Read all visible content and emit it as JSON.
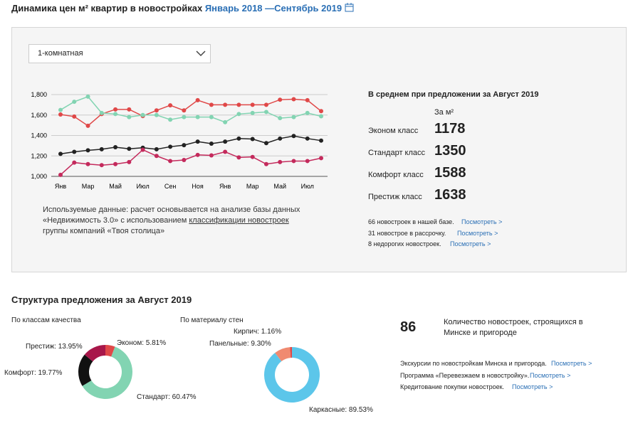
{
  "header": {
    "title": "Динамика цен м² квартир в новостройках",
    "period": "Январь 2018 —Сентябрь 2019"
  },
  "filter": {
    "selected": "1-комнатная"
  },
  "summary": {
    "title": "В среднем при предложении за Август 2019",
    "unit": "За м²",
    "rows": [
      {
        "label": "Эконом класс",
        "value": 1178
      },
      {
        "label": "Стандарт класс",
        "value": 1350
      },
      {
        "label": "Комфорт класс",
        "value": 1588
      },
      {
        "label": "Престиж класс",
        "value": 1638
      }
    ],
    "links": [
      {
        "text": "66 новостроек в нашей базе.",
        "link": "Посмотреть >"
      },
      {
        "text": "31 новострое в рассрочку.",
        "link": "Посмотреть >"
      },
      {
        "text": "8 недорогих новостроек.",
        "link": "Посмотреть >"
      }
    ]
  },
  "note": {
    "before": "Используемые данные: расчет основывается на анализе базы данных «Недвижимость 3.0» с использованием",
    "link": "классификации новостроек",
    "after": "группы компаний «Твоя столица»"
  },
  "structure": {
    "title": "Структура предложения за Август 2019",
    "count": 86,
    "count_text": "Количество новостроек, строящихся в Минске и пригороде",
    "links": [
      {
        "text": "Экскурсии по новостройкам Минска и пригорода.",
        "link": "Посмотреть >"
      },
      {
        "text": "Программа «Перевезжаем в новостройку».",
        "link": "Посмотреть >"
      },
      {
        "text": "Кредитование покупки новостроек.",
        "link": "Посмотреть >"
      }
    ]
  },
  "chart_data": [
    {
      "type": "line",
      "categories": [
        "Янв",
        null,
        "Мар",
        null,
        "Май",
        null,
        "Июл",
        null,
        "Сен",
        null,
        "Ноя",
        null,
        "Янв",
        null,
        "Мар",
        null,
        "Май",
        null,
        "Июл",
        null
      ],
      "ylim": [
        1000,
        1800
      ],
      "yticks": [
        {
          "value": 1000,
          "label": "1,000"
        },
        {
          "value": 1200,
          "label": "1,200"
        },
        {
          "value": 1400,
          "label": "1,400"
        },
        {
          "value": 1600,
          "label": "1,600"
        },
        {
          "value": 1800,
          "label": "1,800"
        }
      ],
      "grid": true,
      "series": [
        {
          "color": "#e04848",
          "values": [
            1605,
            1585,
            1495,
            1610,
            1655,
            1655,
            1590,
            1645,
            1695,
            1645,
            1745,
            1700,
            1700,
            1700,
            1700,
            1700,
            1750,
            1755,
            1745,
            1638
          ]
        },
        {
          "color": "#82d4b2",
          "values": [
            1650,
            1730,
            1780,
            1620,
            1610,
            1580,
            1600,
            1600,
            1555,
            1580,
            1580,
            1580,
            1530,
            1610,
            1620,
            1630,
            1570,
            1580,
            1620,
            1588
          ]
        },
        {
          "color": "#222222",
          "values": [
            1220,
            1240,
            1255,
            1265,
            1285,
            1270,
            1280,
            1265,
            1290,
            1305,
            1340,
            1320,
            1340,
            1370,
            1365,
            1325,
            1370,
            1395,
            1370,
            1350
          ]
        },
        {
          "color": "#c42a5c",
          "values": [
            1015,
            1135,
            1120,
            1110,
            1120,
            1140,
            1260,
            1200,
            1150,
            1160,
            1210,
            1205,
            1240,
            1185,
            1190,
            1120,
            1140,
            1150,
            1150,
            1178
          ]
        }
      ]
    },
    {
      "type": "pie",
      "title": "По классам качества",
      "values": [
        5.81,
        60.47,
        19.77,
        13.95
      ],
      "value_labels": [
        "Эконом: 5.81%",
        "Стандарт: 60.47%",
        "Комфорт: 19.77%",
        "Престиж: 13.95%"
      ],
      "colors": [
        "#e04848",
        "#82d4b2",
        "#111111",
        "#a8174a"
      ]
    },
    {
      "type": "pie",
      "title": "По материалу стен",
      "values": [
        89.53,
        9.3,
        1.16
      ],
      "value_labels": [
        "Каркасные: 89.53%",
        "Панельные: 9.30%",
        "Кирпич: 1.16%"
      ],
      "colors": [
        "#5cc6ea",
        "#f08a70",
        "#e04848"
      ]
    }
  ]
}
